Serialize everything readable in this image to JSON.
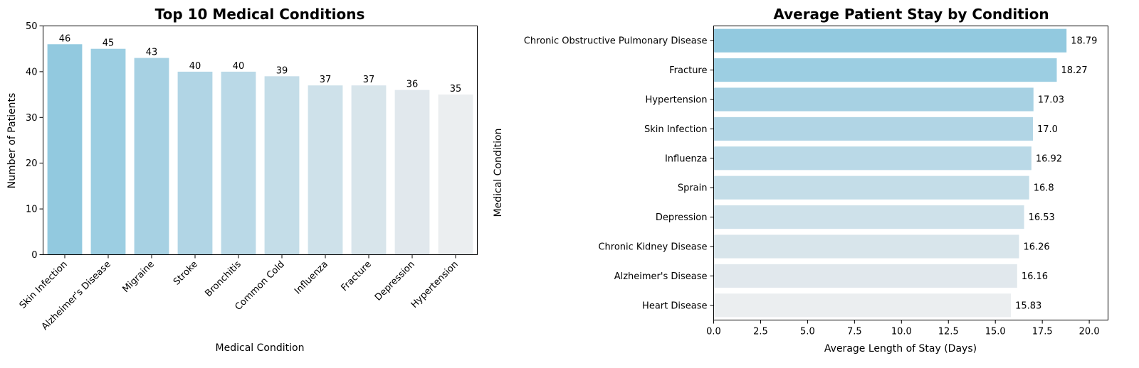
{
  "chart_data": [
    {
      "type": "bar",
      "title": "Top 10 Medical Conditions",
      "xlabel": "Medical Condition",
      "ylabel": "Number of Patients",
      "categories": [
        "Skin Infection",
        "Alzheimer's Disease",
        "Migraine",
        "Stroke",
        "Bronchitis",
        "Common Cold",
        "Influenza",
        "Fracture",
        "Depression",
        "Hypertension"
      ],
      "values": [
        46,
        45,
        43,
        40,
        40,
        39,
        37,
        37,
        36,
        35
      ],
      "data_labels": [
        "46",
        "45",
        "43",
        "40",
        "40",
        "39",
        "37",
        "37",
        "36",
        "35"
      ],
      "ylim": [
        0,
        50
      ],
      "yticks": [
        0,
        10,
        20,
        30,
        40,
        50
      ],
      "ytick_labels": [
        "0",
        "10",
        "20",
        "30",
        "40",
        "50"
      ],
      "colors": [
        "#92c9df",
        "#9ccee2",
        "#a7d1e3",
        "#b1d5e5",
        "#bad9e7",
        "#c4dde8",
        "#cee1ea",
        "#d8e5eb",
        "#e1e8ed",
        "#ebeef0"
      ],
      "grid": false,
      "legend": "none"
    },
    {
      "type": "bar",
      "orientation": "horizontal",
      "title": "Average Patient Stay by Condition",
      "xlabel": "Average Length of Stay (Days)",
      "ylabel": "Medical Condition",
      "categories": [
        "Chronic Obstructive Pulmonary Disease",
        "Fracture",
        "Hypertension",
        "Skin Infection",
        "Influenza",
        "Sprain",
        "Depression",
        "Chronic Kidney Disease",
        "Alzheimer's Disease",
        "Heart Disease"
      ],
      "values": [
        18.79,
        18.27,
        17.03,
        17.0,
        16.92,
        16.8,
        16.53,
        16.26,
        16.16,
        15.83
      ],
      "data_labels": [
        "18.79",
        "18.27",
        "17.03",
        "17.0",
        "16.92",
        "16.8",
        "16.53",
        "16.26",
        "16.16",
        "15.83"
      ],
      "xlim": [
        0,
        21
      ],
      "xticks": [
        0,
        2.5,
        5,
        7.5,
        10,
        12.5,
        15,
        17.5,
        20
      ],
      "xtick_labels": [
        "0.0",
        "2.5",
        "5.0",
        "7.5",
        "10.0",
        "12.5",
        "15.0",
        "17.5",
        "20.0"
      ],
      "colors": [
        "#92c9df",
        "#9ccee2",
        "#a7d1e3",
        "#b1d5e5",
        "#bad9e7",
        "#c4dde8",
        "#cee1ea",
        "#d8e5eb",
        "#e1e8ed",
        "#ebeef0"
      ],
      "grid": false,
      "legend": "none"
    }
  ]
}
